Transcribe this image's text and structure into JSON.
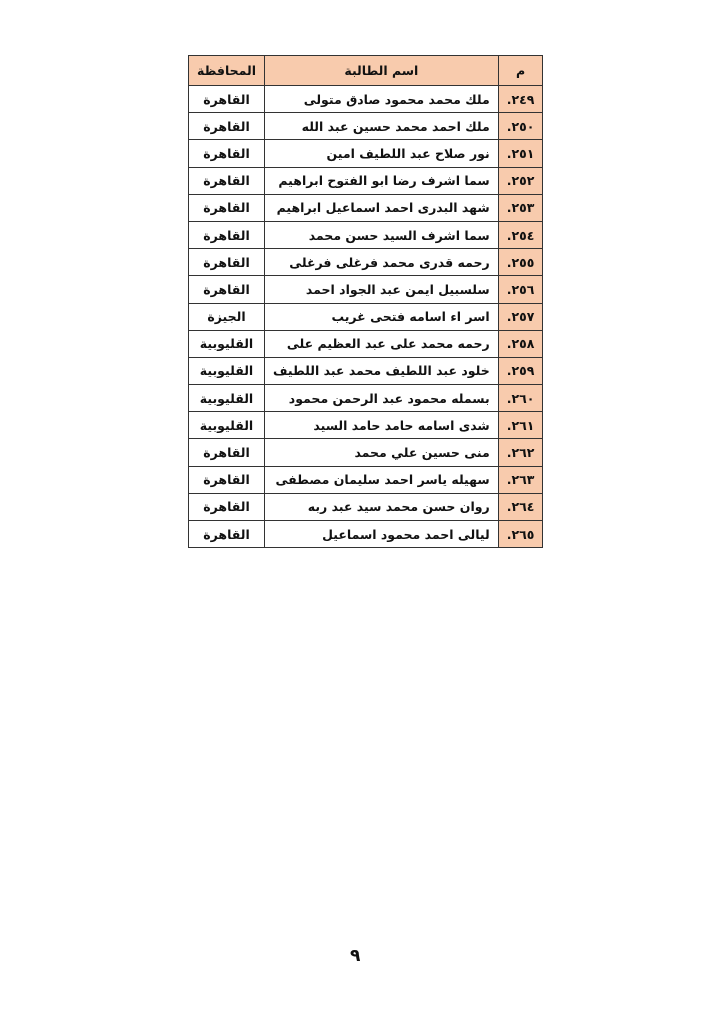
{
  "table": {
    "headers": {
      "num": "م",
      "name": "اسم الطالبة",
      "gov": "المحافظة"
    },
    "rows": [
      {
        "num": "٢٤٩.",
        "name": "ملك محمد محمود صادق متولى",
        "gov": "القاهرة"
      },
      {
        "num": "٢٥٠.",
        "name": "ملك احمد محمد حسين عبد الله",
        "gov": "القاهرة"
      },
      {
        "num": "٢٥١.",
        "name": "نور صلاح عبد اللطيف امين",
        "gov": "القاهرة"
      },
      {
        "num": "٢٥٢.",
        "name": "سما اشرف رضا ابو الفتوح ابراهيم",
        "gov": "القاهرة"
      },
      {
        "num": "٢٥٣.",
        "name": "شهد البدرى احمد اسماعيل ابراهيم",
        "gov": "القاهرة"
      },
      {
        "num": "٢٥٤.",
        "name": "سما اشرف السيد حسن محمد",
        "gov": "القاهرة"
      },
      {
        "num": "٢٥٥.",
        "name": "رحمه قدرى محمد فرغلى فرغلى",
        "gov": "القاهرة"
      },
      {
        "num": "٢٥٦.",
        "name": "سلسبيل ايمن عبد الجواد احمد",
        "gov": "القاهرة"
      },
      {
        "num": "٢٥٧.",
        "name": "اسر اء اسامه فتحى غريب",
        "gov": "الجيزة"
      },
      {
        "num": "٢٥٨.",
        "name": "رحمه محمد على عبد العظيم على",
        "gov": "القليوبية"
      },
      {
        "num": "٢٥٩.",
        "name": "خلود عبد اللطيف محمد عبد اللطيف",
        "gov": "القليوبية"
      },
      {
        "num": "٢٦٠.",
        "name": "بسمله محمود عبد الرحمن محمود",
        "gov": "القليوبية"
      },
      {
        "num": "٢٦١.",
        "name": "شدى اسامه حامد حامد السيد",
        "gov": "القليوبية"
      },
      {
        "num": "٢٦٢.",
        "name": "منى حسين علي محمد",
        "gov": "القاهرة"
      },
      {
        "num": "٢٦٣.",
        "name": "سهيله ياسر احمد سليمان مصطفى",
        "gov": "القاهرة"
      },
      {
        "num": "٢٦٤.",
        "name": "روان حسن محمد سيد عبد ربه",
        "gov": "القاهرة"
      },
      {
        "num": "٢٦٥.",
        "name": "ليالى احمد محمود اسماعيل",
        "gov": "القاهرة"
      }
    ]
  },
  "page_number": "٩",
  "colors": {
    "header_fill": "#f8cbad"
  }
}
